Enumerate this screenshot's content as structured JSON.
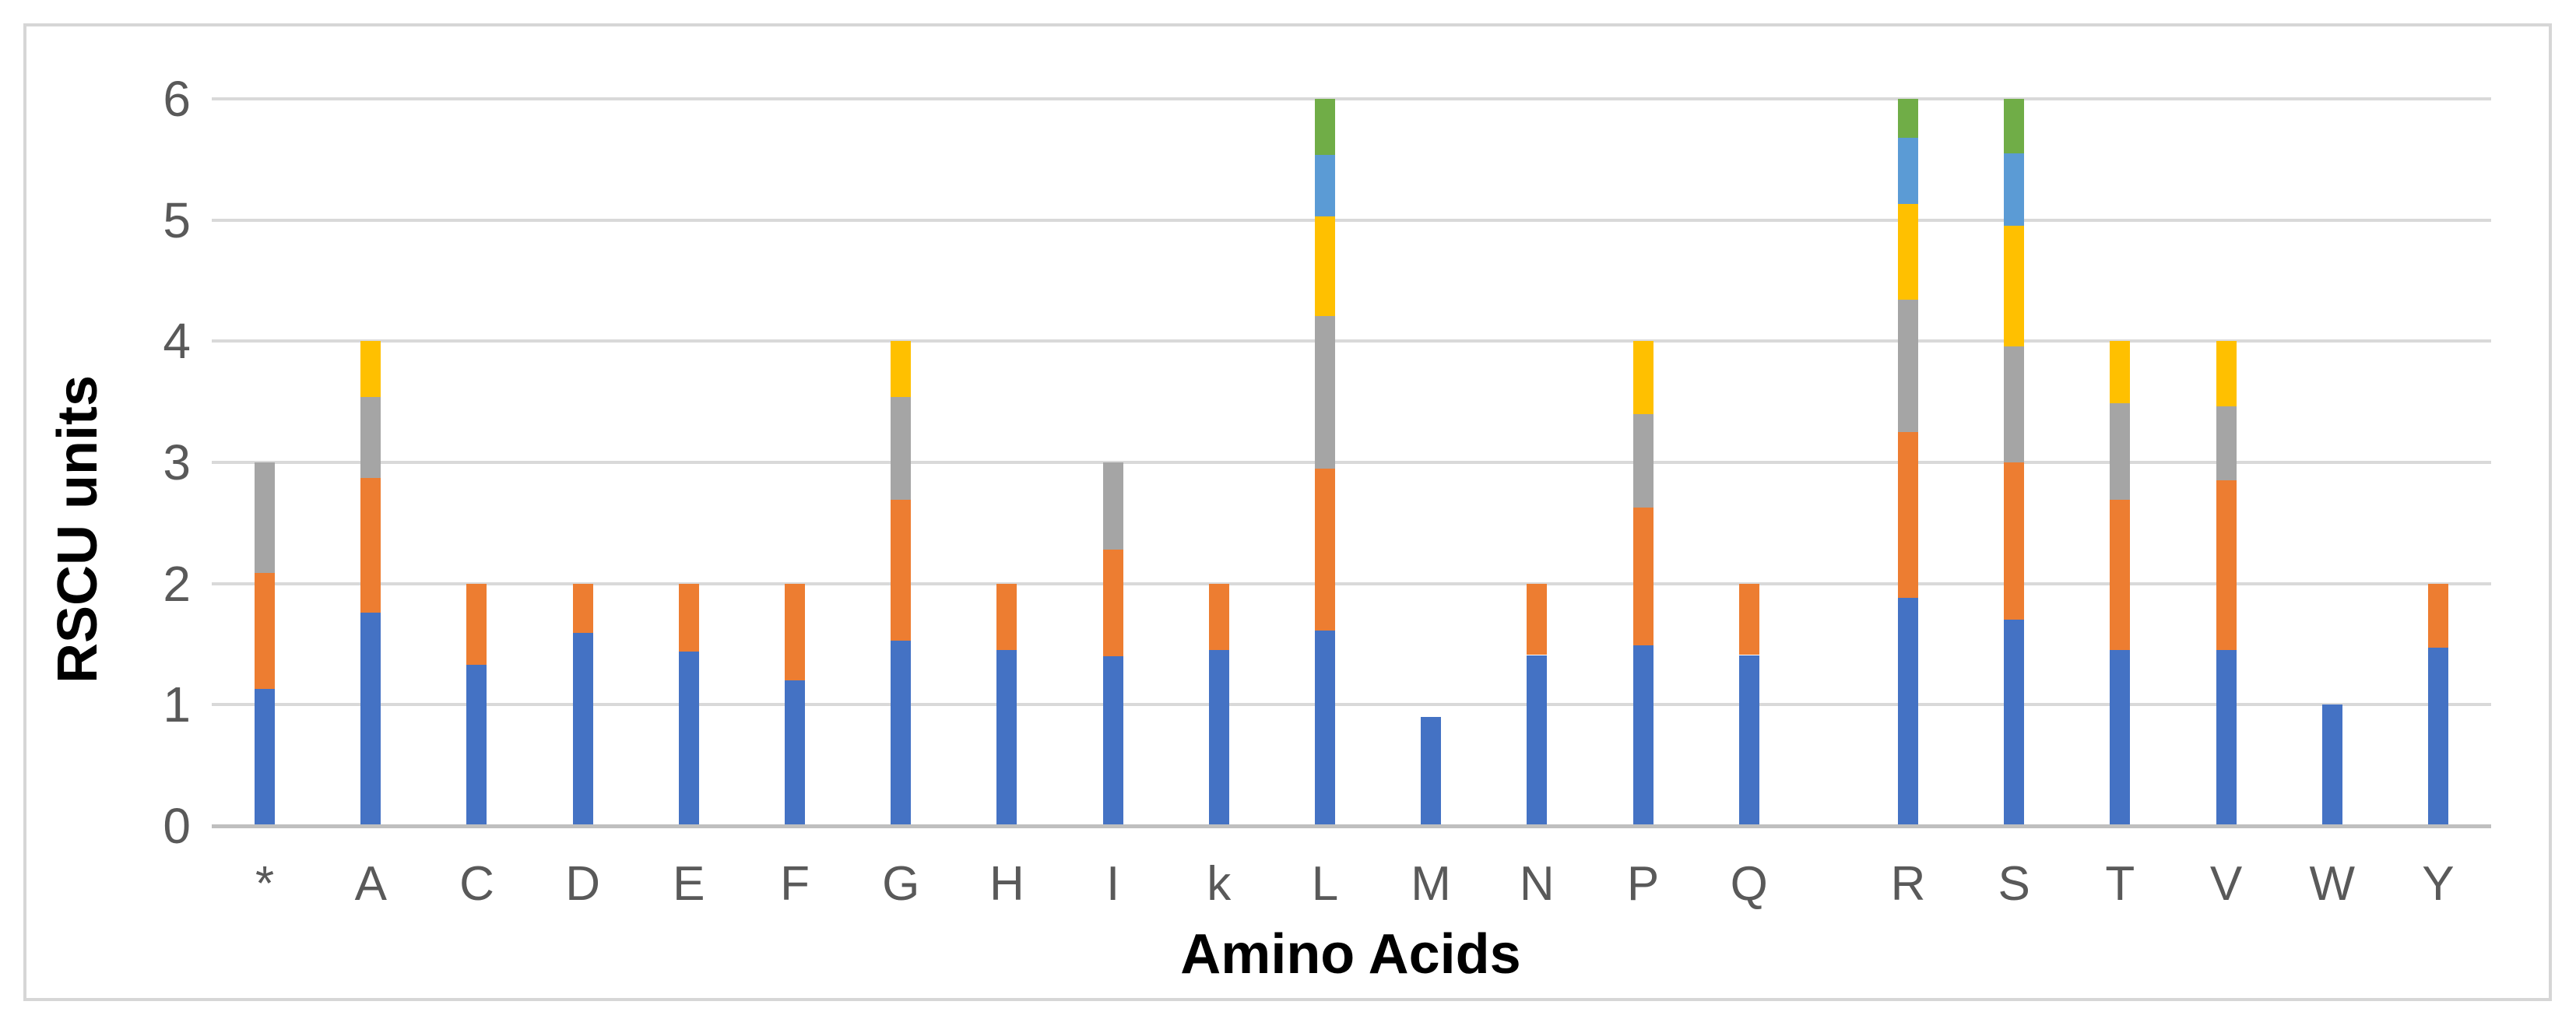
{
  "chart_data": {
    "type": "bar",
    "stacked": true,
    "title": "",
    "xlabel": "Amino Acids",
    "ylabel": "RSCU units",
    "ylim": [
      0,
      6
    ],
    "yticks": [
      0,
      1,
      2,
      3,
      4,
      5,
      6
    ],
    "grid": true,
    "legend": "none",
    "palette": [
      "#4472C4",
      "#ED7D31",
      "#A5A5A5",
      "#FFC000",
      "#5B9BD5",
      "#70AD47"
    ],
    "series_note": "each stacked segment is one codon RSCU value, bottom-to-top",
    "categories": [
      {
        "label": "*",
        "segments": [
          1.13,
          0.96,
          0.91
        ]
      },
      {
        "label": "A",
        "segments": [
          1.76,
          1.11,
          0.67,
          0.46
        ]
      },
      {
        "label": "C",
        "segments": [
          1.33,
          0.67
        ]
      },
      {
        "label": "D",
        "segments": [
          1.59,
          0.41
        ]
      },
      {
        "label": "E",
        "segments": [
          1.44,
          0.56
        ]
      },
      {
        "label": "F",
        "segments": [
          1.2,
          0.8
        ]
      },
      {
        "label": "G",
        "segments": [
          1.53,
          1.16,
          0.85,
          0.46
        ]
      },
      {
        "label": "H",
        "segments": [
          1.45,
          0.55
        ]
      },
      {
        "label": "I",
        "segments": [
          1.4,
          0.88,
          0.72
        ]
      },
      {
        "label": "k",
        "segments": [
          1.45,
          0.55
        ]
      },
      {
        "label": "L",
        "segments": [
          1.61,
          1.34,
          1.26,
          0.82,
          0.51,
          0.46
        ]
      },
      {
        "label": "M",
        "segments": [
          0.9
        ]
      },
      {
        "label": "N",
        "segments": [
          1.41,
          0.59
        ]
      },
      {
        "label": "P",
        "segments": [
          1.49,
          1.14,
          0.77,
          0.6
        ]
      },
      {
        "label": "Q",
        "segments": [
          1.41,
          0.59
        ]
      },
      {
        "label": "",
        "segments": [],
        "spacer": true
      },
      {
        "label": "R",
        "segments": [
          1.88,
          1.37,
          1.09,
          0.79,
          0.55,
          0.32
        ]
      },
      {
        "label": "S",
        "segments": [
          1.7,
          1.3,
          0.96,
          0.99,
          0.6,
          0.45
        ]
      },
      {
        "label": "T",
        "segments": [
          1.45,
          1.24,
          0.8,
          0.51
        ]
      },
      {
        "label": "V",
        "segments": [
          1.45,
          1.4,
          0.61,
          0.54
        ]
      },
      {
        "label": "W",
        "segments": [
          1.0
        ]
      },
      {
        "label": "Y",
        "segments": [
          1.47,
          0.53
        ]
      }
    ]
  }
}
